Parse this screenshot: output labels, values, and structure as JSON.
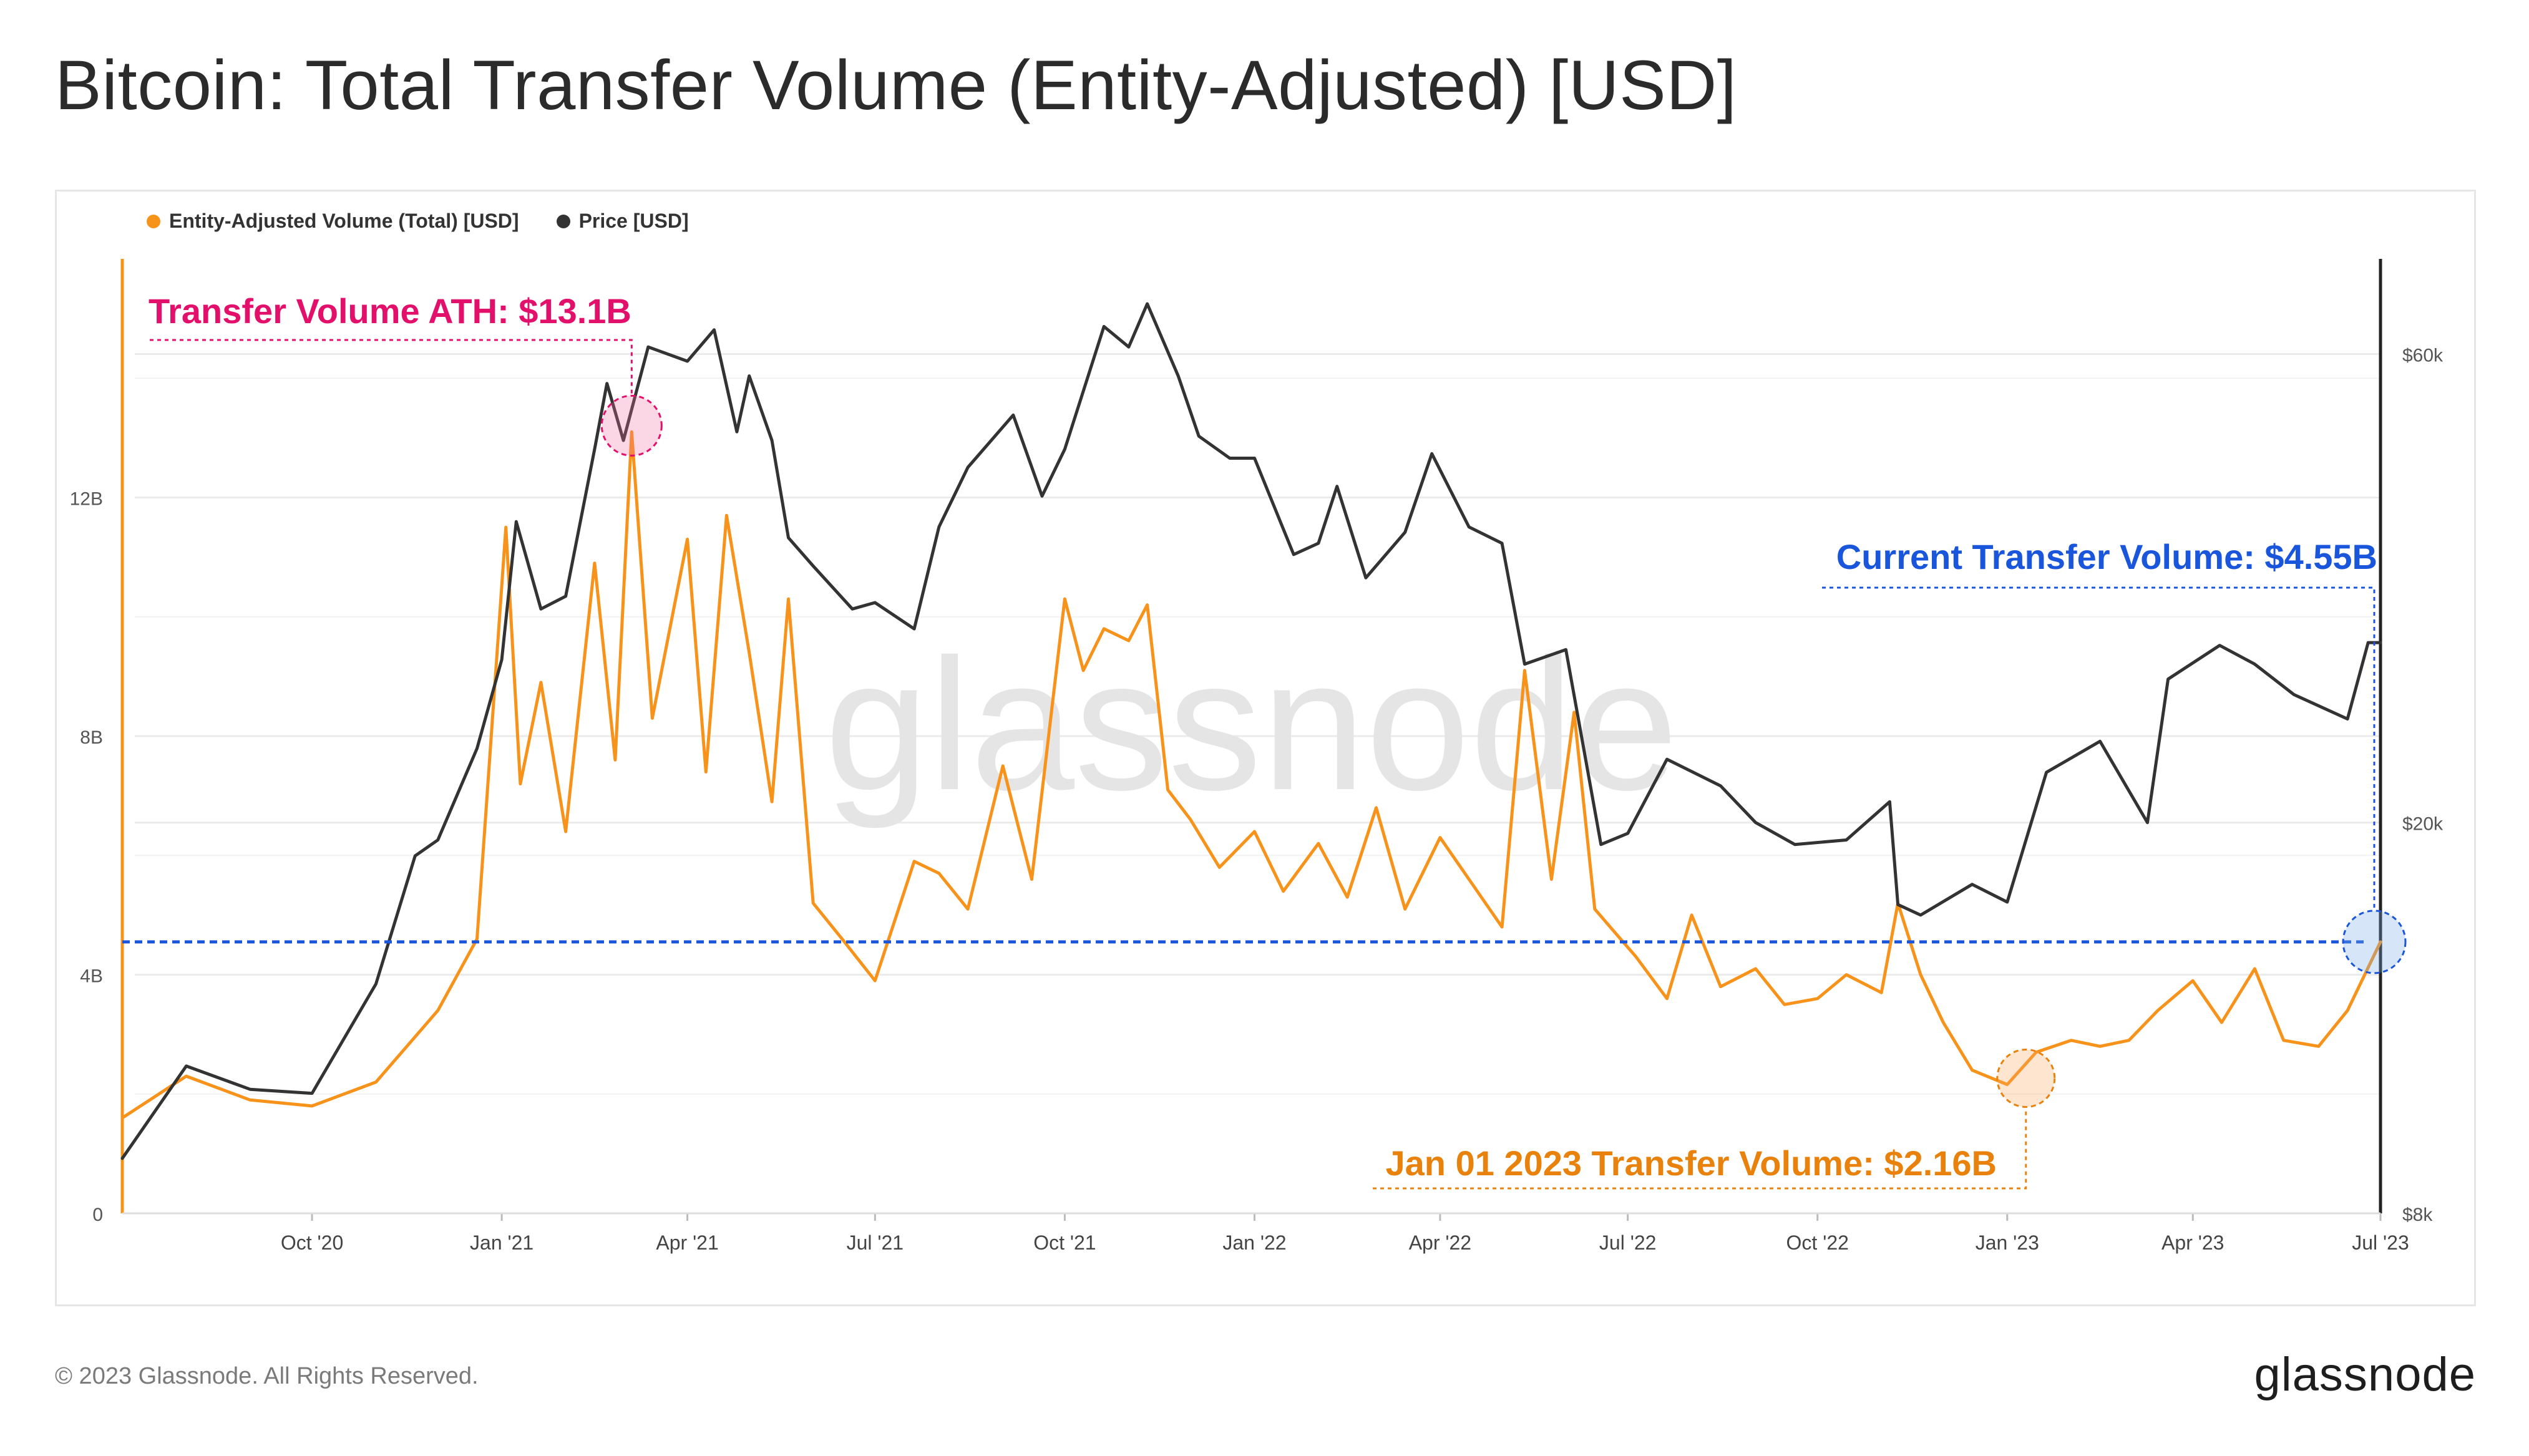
{
  "title": "Bitcoin: Total Transfer Volume (Entity-Adjusted) [USD]",
  "footer": "© 2023 Glassnode. All Rights Reserved.",
  "brand": "glassnode",
  "watermark": "glassnode",
  "chart_data": {
    "type": "line",
    "title": "Bitcoin: Total Transfer Volume (Entity-Adjusted) [USD]",
    "legend": [
      {
        "label": "Entity-Adjusted Volume (Total) [USD]",
        "color": "#f7931a"
      },
      {
        "label": "Price [USD]",
        "color": "#333333"
      }
    ],
    "legend_position": "top-left",
    "x_ticks": [
      "Oct '20",
      "Jan '21",
      "Apr '21",
      "Jul '21",
      "Oct '21",
      "Jan '22",
      "Apr '22",
      "Jul '22",
      "Oct '22",
      "Jan '23",
      "Apr '23",
      "Jul '23"
    ],
    "y_left_ticks": [
      "0",
      "4B",
      "8B",
      "12B"
    ],
    "y_left_range": [
      0,
      16000000000
    ],
    "y_right_ticks": [
      "$8k",
      "$20k",
      "$60k"
    ],
    "y_right_range": [
      8000,
      75000
    ],
    "y_right_scale": "log",
    "grid": true,
    "x_range": [
      "2020-07-01",
      "2023-07-01"
    ],
    "series": [
      {
        "name": "Entity-Adjusted Volume (Total) [USD]",
        "color": "#f7931a",
        "axis": "left",
        "unit": "B USD",
        "x": [
          "2020-07-01",
          "2020-08-01",
          "2020-09-01",
          "2020-10-01",
          "2020-11-01",
          "2020-12-01",
          "2020-12-20",
          "2021-01-03",
          "2021-01-10",
          "2021-01-20",
          "2021-02-01",
          "2021-02-15",
          "2021-02-25",
          "2021-03-05",
          "2021-03-15",
          "2021-04-01",
          "2021-04-10",
          "2021-04-20",
          "2021-05-01",
          "2021-05-12",
          "2021-05-20",
          "2021-06-01",
          "2021-06-15",
          "2021-07-01",
          "2021-07-20",
          "2021-08-01",
          "2021-08-15",
          "2021-09-01",
          "2021-09-15",
          "2021-10-01",
          "2021-10-10",
          "2021-10-20",
          "2021-11-01",
          "2021-11-10",
          "2021-11-20",
          "2021-12-01",
          "2021-12-15",
          "2022-01-01",
          "2022-01-15",
          "2022-02-01",
          "2022-02-15",
          "2022-03-01",
          "2022-03-15",
          "2022-04-01",
          "2022-04-15",
          "2022-05-01",
          "2022-05-12",
          "2022-05-25",
          "2022-06-05",
          "2022-06-15",
          "2022-06-25",
          "2022-07-05",
          "2022-07-20",
          "2022-08-01",
          "2022-08-15",
          "2022-09-01",
          "2022-09-15",
          "2022-10-01",
          "2022-10-15",
          "2022-11-01",
          "2022-11-09",
          "2022-11-20",
          "2022-12-01",
          "2022-12-15",
          "2023-01-01",
          "2023-01-15",
          "2023-02-01",
          "2023-02-15",
          "2023-03-01",
          "2023-03-15",
          "2023-04-01",
          "2023-04-15",
          "2023-05-01",
          "2023-05-15",
          "2023-06-01",
          "2023-06-15",
          "2023-07-01"
        ],
        "values": [
          1.6,
          2.3,
          1.9,
          1.8,
          2.2,
          3.4,
          4.6,
          11.5,
          7.2,
          8.9,
          6.4,
          10.9,
          7.6,
          13.1,
          8.3,
          11.3,
          7.4,
          11.7,
          9.4,
          6.9,
          10.3,
          5.2,
          4.6,
          3.9,
          5.9,
          5.7,
          5.1,
          7.5,
          5.6,
          10.3,
          9.1,
          9.8,
          9.6,
          10.2,
          7.1,
          6.6,
          5.8,
          6.4,
          5.4,
          6.2,
          5.3,
          6.8,
          5.1,
          6.3,
          5.6,
          4.8,
          9.1,
          5.6,
          8.4,
          5.1,
          4.7,
          4.3,
          3.6,
          5.0,
          3.8,
          4.1,
          3.5,
          3.6,
          4.0,
          3.7,
          5.2,
          4.0,
          3.2,
          2.4,
          2.16,
          2.7,
          2.9,
          2.8,
          2.9,
          3.4,
          3.9,
          3.2,
          4.1,
          2.9,
          2.8,
          3.4,
          4.55
        ]
      },
      {
        "name": "Price [USD]",
        "color": "#333333",
        "axis": "right",
        "unit": "USD",
        "x": [
          "2020-07-01",
          "2020-08-01",
          "2020-09-01",
          "2020-10-01",
          "2020-11-01",
          "2020-11-20",
          "2020-12-01",
          "2020-12-20",
          "2021-01-01",
          "2021-01-08",
          "2021-01-20",
          "2021-02-01",
          "2021-02-15",
          "2021-02-21",
          "2021-03-01",
          "2021-03-13",
          "2021-04-01",
          "2021-04-14",
          "2021-04-25",
          "2021-05-01",
          "2021-05-12",
          "2021-05-20",
          "2021-06-01",
          "2021-06-20",
          "2021-07-01",
          "2021-07-20",
          "2021-08-01",
          "2021-08-15",
          "2021-09-06",
          "2021-09-20",
          "2021-10-01",
          "2021-10-20",
          "2021-11-01",
          "2021-11-10",
          "2021-11-25",
          "2021-12-05",
          "2021-12-20",
          "2022-01-01",
          "2022-01-20",
          "2022-02-01",
          "2022-02-10",
          "2022-02-24",
          "2022-03-15",
          "2022-03-28",
          "2022-04-15",
          "2022-05-01",
          "2022-05-12",
          "2022-06-01",
          "2022-06-18",
          "2022-07-01",
          "2022-07-20",
          "2022-08-15",
          "2022-09-01",
          "2022-09-20",
          "2022-10-15",
          "2022-11-05",
          "2022-11-09",
          "2022-11-20",
          "2022-12-15",
          "2023-01-01",
          "2023-01-20",
          "2023-02-15",
          "2023-03-10",
          "2023-03-20",
          "2023-04-14",
          "2023-05-01",
          "2023-05-20",
          "2023-06-15",
          "2023-06-25",
          "2023-07-01"
        ],
        "values": [
          9100,
          11300,
          10700,
          10600,
          13700,
          18500,
          19200,
          23800,
          29300,
          40500,
          33000,
          34000,
          48000,
          56000,
          49000,
          61000,
          59000,
          63500,
          50000,
          57000,
          49000,
          39000,
          36500,
          33000,
          33500,
          31500,
          40000,
          46000,
          52000,
          43000,
          48000,
          64000,
          61000,
          67500,
          57000,
          49500,
          47000,
          47000,
          37500,
          38500,
          44000,
          35500,
          39500,
          47500,
          40000,
          38500,
          29000,
          30000,
          19000,
          19500,
          23200,
          21800,
          20000,
          19000,
          19200,
          21000,
          16500,
          16100,
          17300,
          16600,
          22500,
          24200,
          20000,
          28000,
          30300,
          29000,
          27000,
          25500,
          30500,
          30500
        ]
      }
    ],
    "annotations": [
      {
        "text": "Transfer Volume ATH: $13.1B",
        "color": "#e3106b",
        "date": "2021-03-05",
        "value": 13.1
      },
      {
        "text": "Current Transfer Volume: $4.55B",
        "color": "#1a56db",
        "date": "2023-07-01",
        "value": 4.55
      },
      {
        "text": "Jan 01 2023 Transfer Volume: $2.16B",
        "color": "#e8820c",
        "date": "2023-01-01",
        "value": 2.16
      }
    ]
  }
}
